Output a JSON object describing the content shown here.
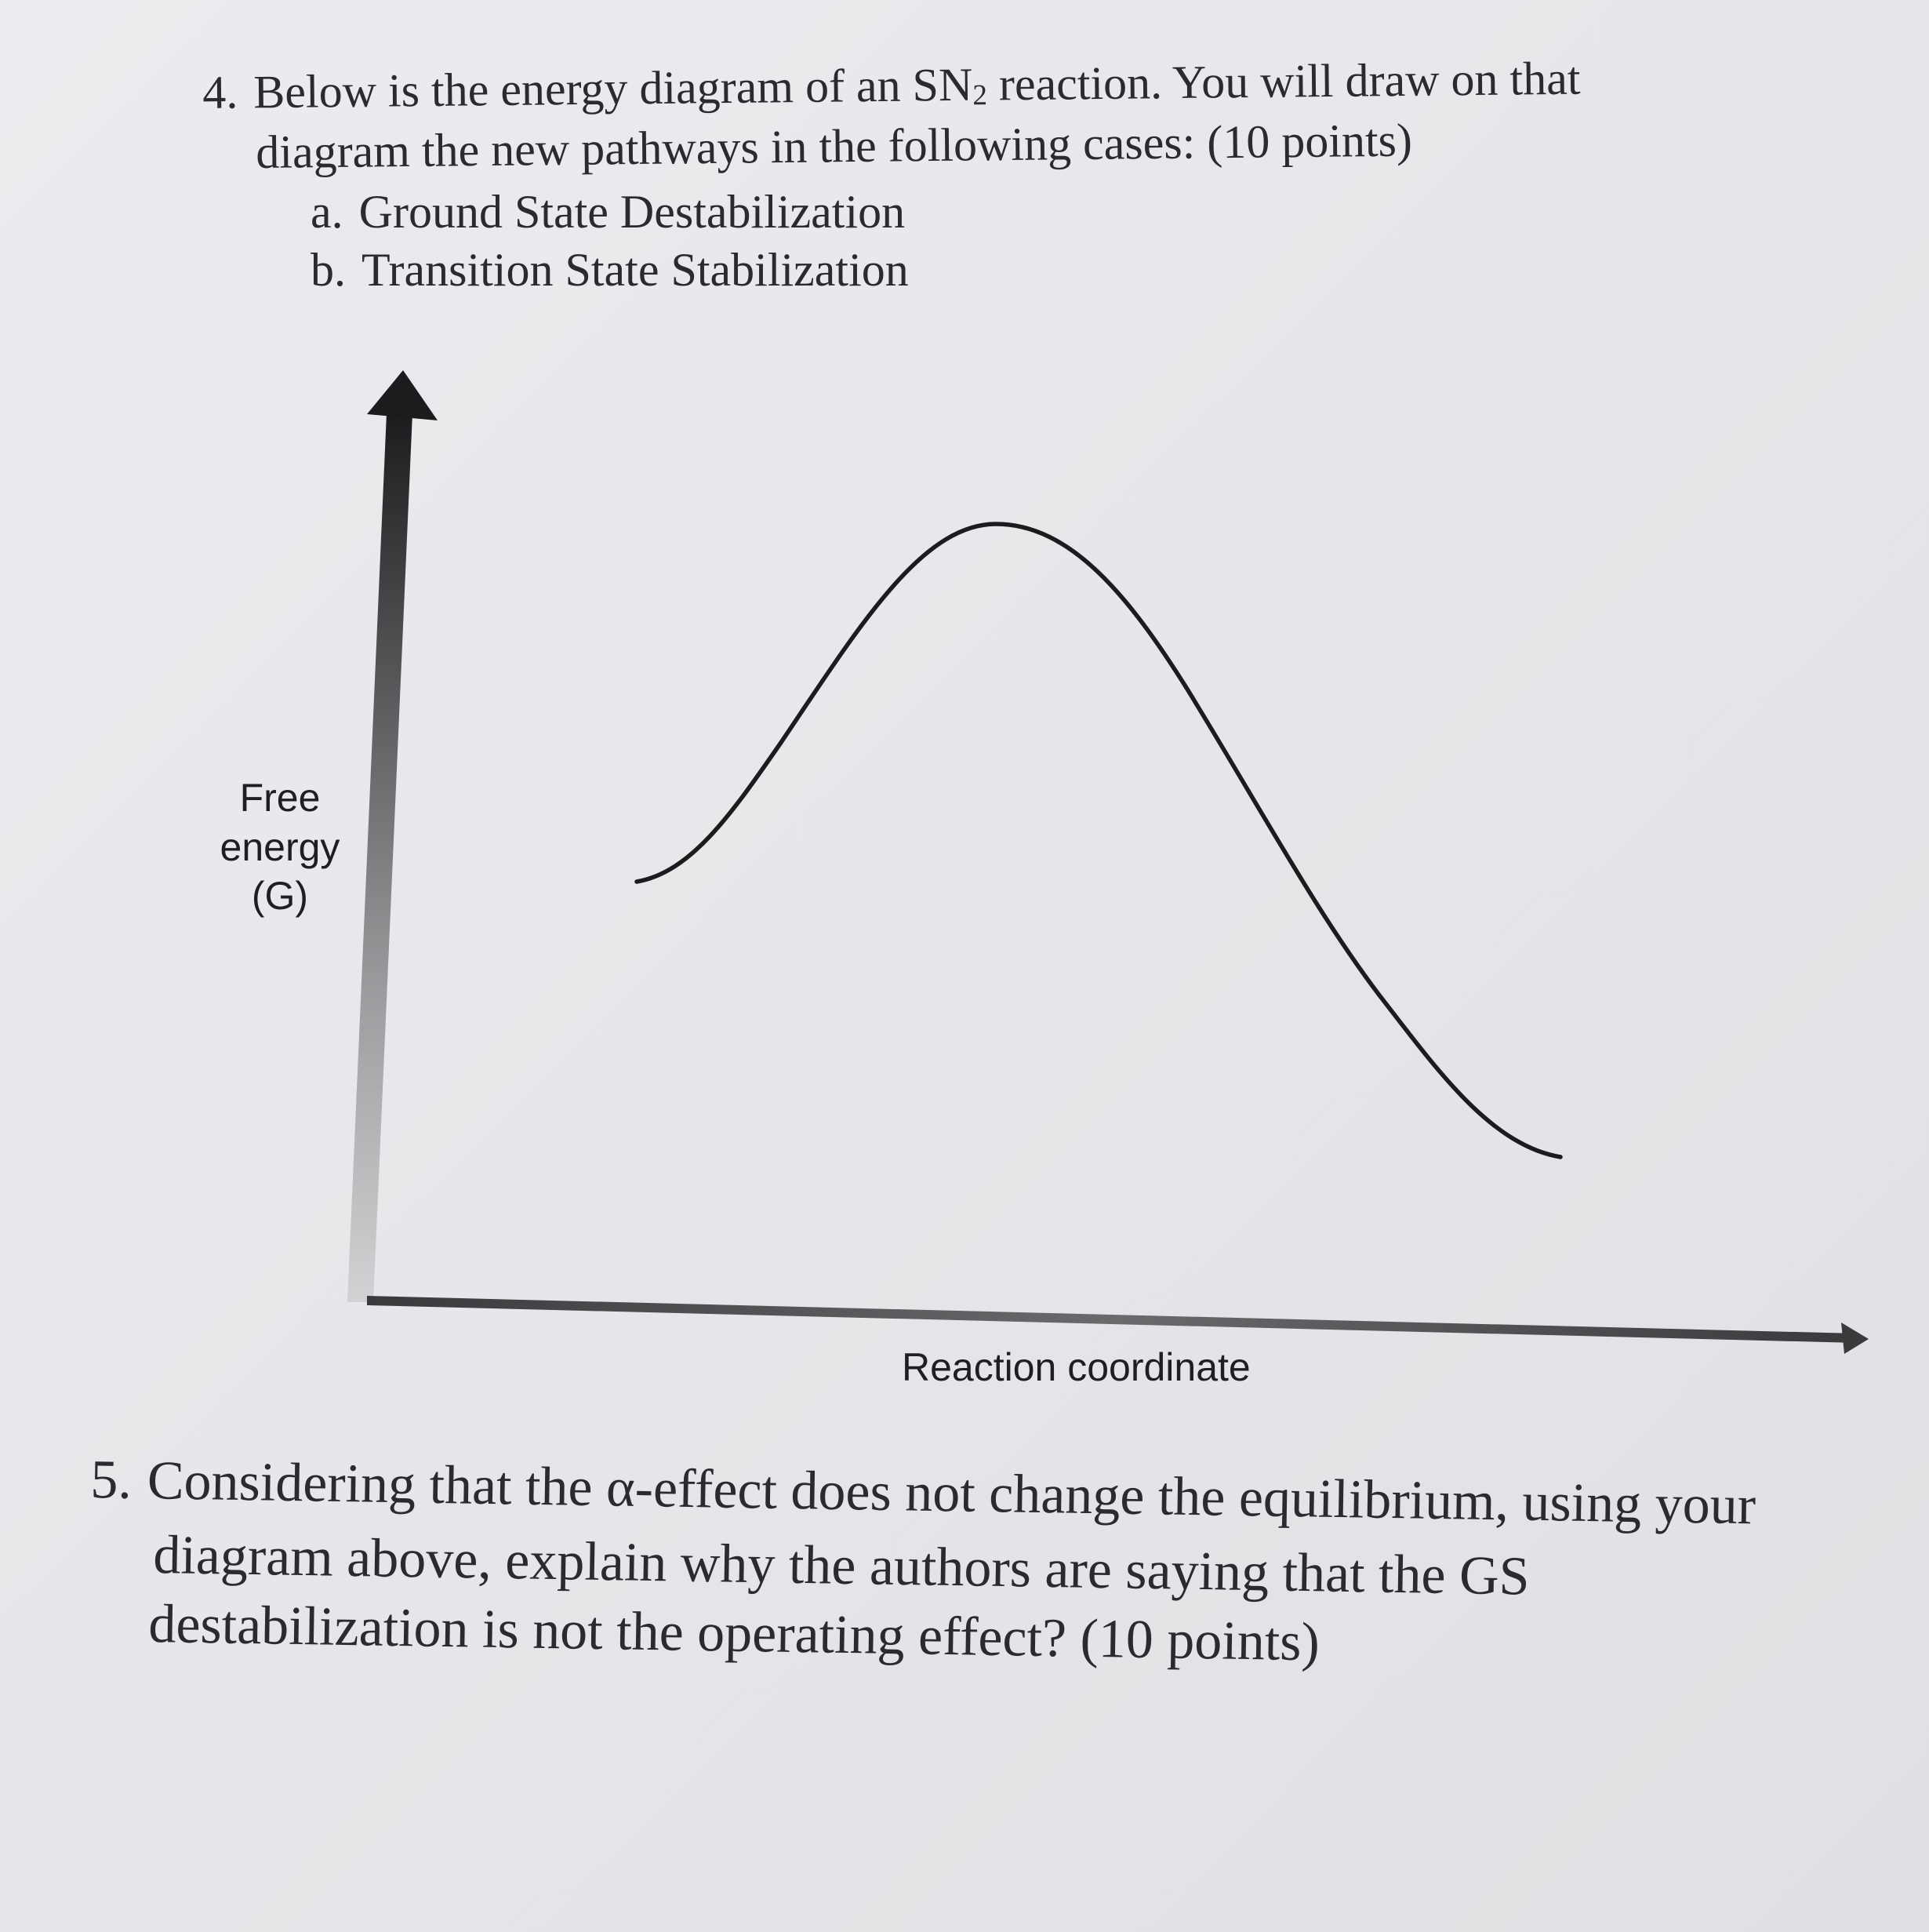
{
  "question4": {
    "number": "4.",
    "line1_before_sub": "Below is the energy diagram of an SN",
    "line1_sub": "2",
    "line1_after_sub": " reaction. You will draw on that",
    "line2": "diagram the new pathways in the following cases: (10 points)",
    "items": [
      {
        "marker": "a.",
        "text": "Ground State Destabilization"
      },
      {
        "marker": "b.",
        "text": "Transition State Stabilization"
      }
    ]
  },
  "diagram": {
    "y_axis_label_lines": [
      "Free",
      "energy",
      "(G)"
    ],
    "x_axis_label": "Reaction coordinate"
  },
  "question5": {
    "number": "5.",
    "lines": [
      "Considering that the α-effect does not change the equilibrium, using your",
      "diagram above, explain why the authors are saying that the GS",
      "destabilization is not the operating effect? (10 points)"
    ]
  }
}
